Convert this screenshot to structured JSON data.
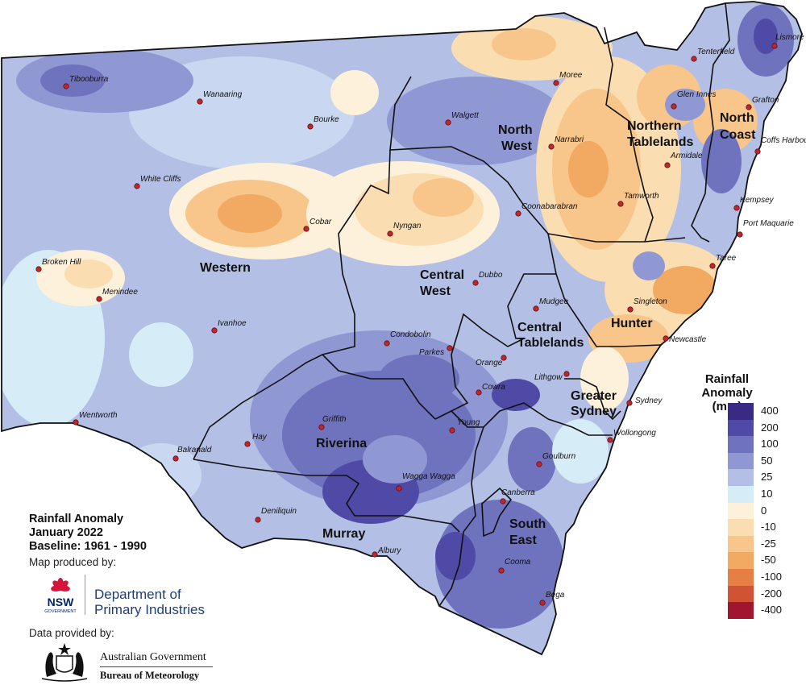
{
  "map": {
    "regions": [
      {
        "name": "Western"
      },
      {
        "name": "North West",
        "lines": [
          "North",
          "West"
        ]
      },
      {
        "name": "Northern Tablelands",
        "lines": [
          "Northern",
          "Tablelands"
        ]
      },
      {
        "name": "North Coast",
        "lines": [
          "North",
          "Coast"
        ]
      },
      {
        "name": "Central West",
        "lines": [
          "Central",
          "West"
        ]
      },
      {
        "name": "Central Tablelands",
        "lines": [
          "Central",
          "Tablelands"
        ]
      },
      {
        "name": "Hunter"
      },
      {
        "name": "Greater Sydney",
        "lines": [
          "Greater",
          "Sydney"
        ]
      },
      {
        "name": "Riverina"
      },
      {
        "name": "Murray"
      },
      {
        "name": "South East",
        "lines": [
          "South",
          "East"
        ]
      }
    ],
    "towns": [
      "Tibooburra",
      "Wanaaring",
      "Bourke",
      "White Cliffs",
      "Cobar",
      "Broken Hill",
      "Menindee",
      "Ivanhoe",
      "Wentworth",
      "Balranald",
      "Hay",
      "Deniliquin",
      "Moree",
      "Walgett",
      "Narrabri",
      "Tenterfield",
      "Glen Innes",
      "Lismore",
      "Grafton",
      "Coffs Harbour",
      "Armidale",
      "Tamworth",
      "Kempsey",
      "Port Maquarie",
      "Taree",
      "Coonabarabran",
      "Nyngan",
      "Dubbo",
      "Mudgee",
      "Singleton",
      "Newcastle",
      "Condobolin",
      "Parkes",
      "Orange",
      "Lithgow",
      "Cowra",
      "Sydney",
      "Griffith",
      "Young",
      "Wollongong",
      "Goulburn",
      "Wagga Wagga",
      "Canberra",
      "Albury",
      "Cooma",
      "Bega"
    ]
  },
  "legend": {
    "title_line1": "Rainfall Anomaly",
    "title_line2": "(mm)",
    "classes": [
      {
        "label": "400",
        "color": "#3b2a84"
      },
      {
        "label": "200",
        "color": "#4f4aa6"
      },
      {
        "label": "100",
        "color": "#6f72bd"
      },
      {
        "label": "50",
        "color": "#8f98d2"
      },
      {
        "label": "25",
        "color": "#b3bfe4"
      },
      {
        "label": "10",
        "color": "#d6ecf7"
      },
      {
        "label": "0",
        "color": "#fdf1dc"
      },
      {
        "label": "-10",
        "color": "#fbddb2"
      },
      {
        "label": "-25",
        "color": "#f8c68a"
      },
      {
        "label": "-50",
        "color": "#f2a962"
      },
      {
        "label": "-100",
        "color": "#e57f43"
      },
      {
        "label": "-200",
        "color": "#cf5334"
      },
      {
        "label": "-400",
        "color": "#a0152f"
      }
    ]
  },
  "info": {
    "line1": "Rainfall Anomaly",
    "line2": "January 2022",
    "line3": "Baseline: 1961 - 1990",
    "produced_by": "Map produced by:",
    "dpi_line1": "Department of",
    "dpi_line2": "Primary Industries",
    "nsw_logo_text": "NSW",
    "nsw_logo_sub": "GOVERNMENT",
    "data_by": "Data provided by:",
    "ag_name": "Australian Government",
    "bom_name": "Bureau of Meteorology"
  }
}
